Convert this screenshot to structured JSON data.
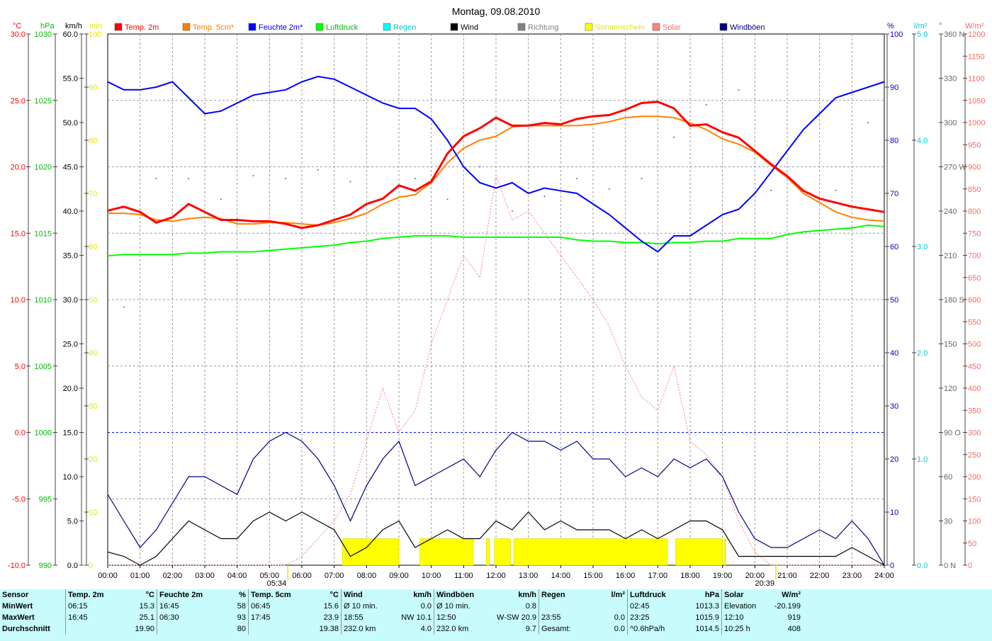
{
  "chart_data": {
    "type": "line",
    "title": "Montag, 09.08.2010",
    "x_ticks": [
      "00:00",
      "01:00",
      "02:00",
      "03:00",
      "04:00",
      "05:00",
      "06:00",
      "07:00",
      "08:00",
      "09:00",
      "10:00",
      "11:00",
      "12:00",
      "13:00",
      "14:00",
      "15:00",
      "16:00",
      "17:00",
      "18:00",
      "19:00",
      "20:00",
      "21:00",
      "22:00",
      "23:00",
      "24:00"
    ],
    "sunrise": "05:34",
    "sunset": "20:39",
    "axes": [
      {
        "unit": "°C",
        "color": "#ff0000",
        "ticks": [
          "30.0",
          "25.0",
          "20.0",
          "15.0",
          "10.0",
          "5.0",
          "0.0",
          "-5.0",
          "-10.0"
        ]
      },
      {
        "unit": "hPa",
        "color": "#00bb00",
        "ticks": [
          "1030",
          "1025",
          "1020",
          "1015",
          "1010",
          "1005",
          "1000",
          "995",
          "990"
        ]
      },
      {
        "unit": "km/h",
        "color": "#000000",
        "ticks": [
          "60.0",
          "55.0",
          "50.0",
          "45.0",
          "40.0",
          "35.0",
          "30.0",
          "25.0",
          "20.0",
          "15.0",
          "10.0",
          "5.0",
          "0.0"
        ]
      },
      {
        "unit": "min",
        "color": "#e8e800",
        "ticks": [
          "100",
          "90",
          "80",
          "70",
          "60",
          "50",
          "40",
          "30",
          "20",
          "10",
          "0"
        ]
      },
      {
        "unit": "%",
        "color": "#0000cc",
        "ticks": [
          "100",
          "90",
          "80",
          "70",
          "60",
          "50",
          "40",
          "30",
          "20",
          "10",
          "0"
        ]
      },
      {
        "unit": "l/m²",
        "color": "#00cccc",
        "ticks": [
          "5.0",
          "4.0",
          "3.0",
          "2.0",
          "1.0",
          "0.0"
        ]
      },
      {
        "unit": "°",
        "color": "#666666",
        "ticks": [
          "360 N",
          "330",
          "300",
          "270 W",
          "240",
          "210",
          "180 S",
          "150",
          "120",
          "90 O",
          "60",
          "30",
          "0 N"
        ]
      },
      {
        "unit": "W/m²",
        "color": "#ff6666",
        "ticks": [
          "1200",
          "1150",
          "1100",
          "1050",
          "1000",
          "950",
          "900",
          "850",
          "800",
          "750",
          "700",
          "650",
          "600",
          "550",
          "500",
          "450",
          "400",
          "350",
          "300",
          "250",
          "200",
          "150",
          "100",
          "50",
          "0"
        ]
      }
    ],
    "legend": [
      {
        "name": "Temp. 2m",
        "color": "#ff0000"
      },
      {
        "name": "Temp. 5cm*",
        "color": "#ff8000"
      },
      {
        "name": "Feuchte 2m*",
        "color": "#0000ff"
      },
      {
        "name": "Luftdruck",
        "color": "#00ff00"
      },
      {
        "name": "Regen",
        "color": "#00ffff"
      },
      {
        "name": "Wind",
        "color": "#000000"
      },
      {
        "name": "Richtung",
        "color": "#808080"
      },
      {
        "name": "Sonnenschein",
        "color": "#ffff00"
      },
      {
        "name": "Solar",
        "color": "#ff8080"
      },
      {
        "name": "Windböen",
        "color": "#000080"
      }
    ],
    "series": [
      {
        "name": "Temp. 2m",
        "unit": "°C",
        "color": "#ff0000",
        "x": [
          0,
          0.5,
          1,
          1.5,
          2,
          2.5,
          3,
          3.5,
          4,
          4.5,
          5,
          5.5,
          6,
          6.5,
          7,
          7.5,
          8,
          8.5,
          9,
          9.5,
          10,
          10.5,
          11,
          11.5,
          12,
          12.5,
          13,
          13.5,
          14,
          14.5,
          15,
          15.5,
          16,
          16.5,
          17,
          17.5,
          18,
          18.5,
          19,
          19.5,
          20,
          20.5,
          21,
          21.5,
          22,
          22.5,
          23,
          23.5,
          24
        ],
        "y": [
          16.7,
          17.0,
          16.6,
          15.8,
          16.2,
          17.2,
          16.6,
          16.0,
          16.0,
          15.9,
          15.9,
          15.7,
          15.4,
          15.6,
          16.0,
          16.4,
          17.2,
          17.6,
          18.6,
          18.2,
          18.9,
          21.0,
          22.3,
          22.9,
          23.7,
          23.1,
          23.1,
          23.3,
          23.2,
          23.6,
          23.8,
          23.9,
          24.3,
          24.8,
          24.9,
          24.4,
          23.1,
          23.2,
          22.6,
          22.2,
          21.2,
          20.2,
          19.3,
          18.2,
          17.6,
          17.3,
          17.0,
          16.8,
          16.6
        ]
      },
      {
        "name": "Temp. 5cm*",
        "unit": "°C",
        "color": "#ff8000",
        "x": [
          0,
          0.5,
          1,
          1.5,
          2,
          2.5,
          3,
          3.5,
          4,
          4.5,
          5,
          5.5,
          6,
          6.5,
          7,
          7.5,
          8,
          8.5,
          9,
          9.5,
          10,
          10.5,
          11,
          11.5,
          12,
          12.5,
          13,
          13.5,
          14,
          14.5,
          15,
          15.5,
          16,
          16.5,
          17,
          17.5,
          18,
          18.5,
          19,
          19.5,
          20,
          20.5,
          21,
          21.5,
          22,
          22.5,
          23,
          23.5,
          24
        ],
        "y": [
          16.5,
          16.5,
          16.4,
          16.0,
          15.9,
          16.1,
          16.2,
          16.1,
          15.7,
          15.7,
          15.8,
          15.8,
          15.7,
          15.6,
          15.8,
          16.1,
          16.5,
          17.2,
          17.7,
          17.9,
          18.8,
          20.3,
          21.4,
          22.0,
          22.3,
          23.0,
          23.1,
          23.1,
          23.1,
          23.1,
          23.2,
          23.4,
          23.7,
          23.8,
          23.8,
          23.7,
          23.3,
          22.8,
          22.1,
          21.7,
          21.1,
          20.1,
          19.2,
          18.0,
          17.3,
          16.6,
          16.2,
          16.0,
          15.9
        ]
      },
      {
        "name": "Feuchte 2m*",
        "unit": "%",
        "color": "#0000ff",
        "x": [
          0,
          0.5,
          1,
          1.5,
          2,
          2.5,
          3,
          3.5,
          4,
          4.5,
          5,
          5.5,
          6,
          6.5,
          7,
          7.5,
          8,
          8.5,
          9,
          9.5,
          10,
          10.5,
          11,
          11.5,
          12,
          12.5,
          13,
          13.5,
          14,
          14.5,
          15,
          15.5,
          16,
          16.5,
          17,
          17.5,
          18,
          18.5,
          19,
          19.5,
          20,
          20.5,
          21,
          21.5,
          22,
          22.5,
          23,
          23.5,
          24
        ],
        "y": [
          91,
          89.5,
          89.5,
          90,
          91,
          88,
          85,
          85.5,
          87,
          88.5,
          89,
          89.5,
          91,
          92,
          91.5,
          90,
          88.5,
          87,
          86,
          86,
          84,
          80,
          75,
          72,
          71,
          72,
          70,
          71,
          70.5,
          70,
          68,
          66,
          63.5,
          61,
          59,
          62,
          62,
          64,
          66,
          67,
          70,
          74,
          78,
          82,
          85,
          88,
          89,
          90,
          91
        ]
      },
      {
        "name": "Luftdruck",
        "unit": "hPa",
        "color": "#00ff00",
        "x": [
          0,
          0.5,
          1,
          1.5,
          2,
          2.5,
          3,
          3.5,
          4,
          4.5,
          5,
          5.5,
          6,
          6.5,
          7,
          7.5,
          8,
          8.5,
          9,
          9.5,
          10,
          10.5,
          11,
          11.5,
          12,
          12.5,
          13,
          13.5,
          14,
          14.5,
          15,
          15.5,
          16,
          16.5,
          17,
          17.5,
          18,
          18.5,
          19,
          19.5,
          20,
          20.5,
          21,
          21.5,
          22,
          22.5,
          23,
          23.5,
          24
        ],
        "y": [
          1013.3,
          1013.4,
          1013.4,
          1013.4,
          1013.4,
          1013.5,
          1013.5,
          1013.6,
          1013.6,
          1013.6,
          1013.7,
          1013.8,
          1013.9,
          1014.0,
          1014.1,
          1014.3,
          1014.4,
          1014.6,
          1014.7,
          1014.8,
          1014.8,
          1014.8,
          1014.7,
          1014.7,
          1014.7,
          1014.7,
          1014.7,
          1014.7,
          1014.7,
          1014.5,
          1014.4,
          1014.4,
          1014.3,
          1014.3,
          1014.2,
          1014.3,
          1014.3,
          1014.4,
          1014.4,
          1014.6,
          1014.6,
          1014.6,
          1014.9,
          1015.1,
          1015.2,
          1015.3,
          1015.4,
          1015.6,
          1015.5
        ]
      },
      {
        "name": "Windböen",
        "unit": "km/h",
        "color": "#000080",
        "x": [
          0,
          0.5,
          1,
          1.5,
          2,
          2.5,
          3,
          3.5,
          4,
          4.5,
          5,
          5.5,
          6,
          6.5,
          7,
          7.5,
          8,
          8.5,
          9,
          9.5,
          10,
          10.5,
          11,
          11.5,
          12,
          12.5,
          13,
          13.5,
          14,
          14.5,
          15,
          15.5,
          16,
          16.5,
          17,
          17.5,
          18,
          18.5,
          19,
          19.5,
          20,
          20.5,
          21,
          21.5,
          22,
          22.5,
          23,
          23.5,
          24
        ],
        "y": [
          8,
          5,
          2,
          4,
          7,
          10,
          10,
          9,
          8,
          12,
          14,
          15,
          14,
          12,
          9,
          5,
          9,
          12,
          14,
          9,
          10,
          11,
          12,
          10,
          13,
          15,
          14,
          14,
          13,
          14,
          12,
          12,
          10,
          11,
          10,
          12,
          11,
          12,
          10,
          6,
          3,
          2,
          2,
          3,
          4,
          3,
          5,
          3,
          0
        ]
      },
      {
        "name": "Wind",
        "unit": "km/h",
        "color": "#000000",
        "x": [
          0,
          0.5,
          1,
          1.5,
          2,
          2.5,
          3,
          3.5,
          4,
          4.5,
          5,
          5.5,
          6,
          6.5,
          7,
          7.5,
          8,
          8.5,
          9,
          9.5,
          10,
          10.5,
          11,
          11.5,
          12,
          12.5,
          13,
          13.5,
          14,
          14.5,
          15,
          15.5,
          16,
          16.5,
          17,
          17.5,
          18,
          18.5,
          19,
          19.5,
          20,
          20.5,
          21,
          21.5,
          22,
          22.5,
          23,
          23.5,
          24
        ],
        "y": [
          1.5,
          1,
          0,
          1,
          3,
          5,
          4,
          3,
          3,
          5,
          6,
          5,
          6,
          5,
          4,
          1,
          2,
          4,
          5,
          2,
          3,
          4,
          3,
          3,
          5,
          4,
          6,
          4,
          5,
          4,
          4,
          4,
          3,
          4,
          3,
          4,
          5,
          5,
          4,
          1,
          1,
          1,
          1,
          1,
          1,
          1,
          2,
          1,
          0
        ]
      },
      {
        "name": "Solar",
        "unit": "W/m²",
        "color": "#ff8080",
        "x": [
          0,
          5.5,
          6,
          6.5,
          7,
          7.5,
          8,
          8.5,
          9,
          9.5,
          10,
          10.5,
          11,
          11.5,
          12,
          12.5,
          13,
          13.5,
          14,
          14.5,
          15,
          15.5,
          16,
          16.5,
          17,
          17.5,
          18,
          18.5,
          19,
          19.5,
          20,
          20.5,
          21,
          22,
          23,
          24
        ],
        "y": [
          0,
          0,
          20,
          60,
          100,
          160,
          280,
          400,
          300,
          350,
          500,
          600,
          700,
          650,
          880,
          780,
          800,
          750,
          700,
          650,
          600,
          540,
          450,
          380,
          350,
          450,
          280,
          250,
          200,
          100,
          30,
          0,
          0,
          0,
          0,
          0
        ]
      }
    ],
    "direction_points": {
      "unit": "°",
      "x": [
        0.5,
        1.5,
        2.5,
        3.5,
        4.5,
        5.5,
        6.5,
        7.5,
        8.5,
        9.5,
        10.5,
        11.5,
        12.5,
        13.5,
        14.5,
        15.5,
        16.5,
        17.5,
        18.5,
        19.5,
        20.5,
        21.5,
        22.5,
        23.5
      ],
      "y": [
        175,
        262,
        262,
        248,
        264,
        262,
        268,
        260,
        248,
        262,
        248,
        270,
        240,
        250,
        262,
        255,
        262,
        290,
        312,
        322,
        254,
        254,
        254,
        300
      ]
    },
    "sunshine_bars": {
      "unit": "min",
      "ranges": [
        [
          7.25,
          9.0
        ],
        [
          9.65,
          11.3
        ],
        [
          11.7,
          11.8
        ],
        [
          11.95,
          12.45
        ],
        [
          12.55,
          17.3
        ],
        [
          17.55,
          19.0
        ],
        [
          19.05,
          19.1
        ]
      ],
      "value": 5
    }
  },
  "stats": {
    "headers": [
      {
        "label": "Sensor",
        "unit": ""
      },
      {
        "label": "Temp. 2m",
        "unit": "°C"
      },
      {
        "label": "Feuchte 2m",
        "unit": "%"
      },
      {
        "label": "Temp. 5cm",
        "unit": "°C"
      },
      {
        "label": "Wind",
        "unit": "km/h"
      },
      {
        "label": "Windböen",
        "unit": "km/h"
      },
      {
        "label": "Regen",
        "unit": "l/m²"
      },
      {
        "label": "Luftdruck",
        "unit": "hPa"
      },
      {
        "label": "Solar",
        "unit": "W/m²"
      }
    ],
    "rows": [
      {
        "label": "MinWert",
        "cells": [
          [
            "06:15",
            "15.3"
          ],
          [
            "16:45",
            "58"
          ],
          [
            "06:45",
            "15.6"
          ],
          [
            "Ø 10 min.",
            "0.0"
          ],
          [
            "Ø 10 min.",
            "0.8"
          ],
          [
            "",
            ""
          ],
          [
            "02:45",
            "1013.3"
          ],
          [
            "Elevation",
            "-20.199"
          ]
        ]
      },
      {
        "label": "MaxWert",
        "cells": [
          [
            "16:45",
            "25.1"
          ],
          [
            "06:30",
            "93"
          ],
          [
            "17:45",
            "23.9"
          ],
          [
            "18:55",
            "NW 10.1"
          ],
          [
            "12:50",
            "W-SW 20.9"
          ],
          [
            "23:55",
            "0.0"
          ],
          [
            "23:25",
            "1015.9"
          ],
          [
            "12:10",
            "919"
          ]
        ]
      },
      {
        "label": "Durchschnitt",
        "cells": [
          [
            "",
            "19.90"
          ],
          [
            "",
            "80"
          ],
          [
            "",
            "19.38"
          ],
          [
            "232.0 km",
            "4.0"
          ],
          [
            "232.0 km",
            "9.7"
          ],
          [
            "Gesamt:",
            "0.0"
          ],
          [
            "^0.6hPa/h",
            "1014.5"
          ],
          [
            "10:25 h",
            "408"
          ]
        ]
      }
    ]
  }
}
